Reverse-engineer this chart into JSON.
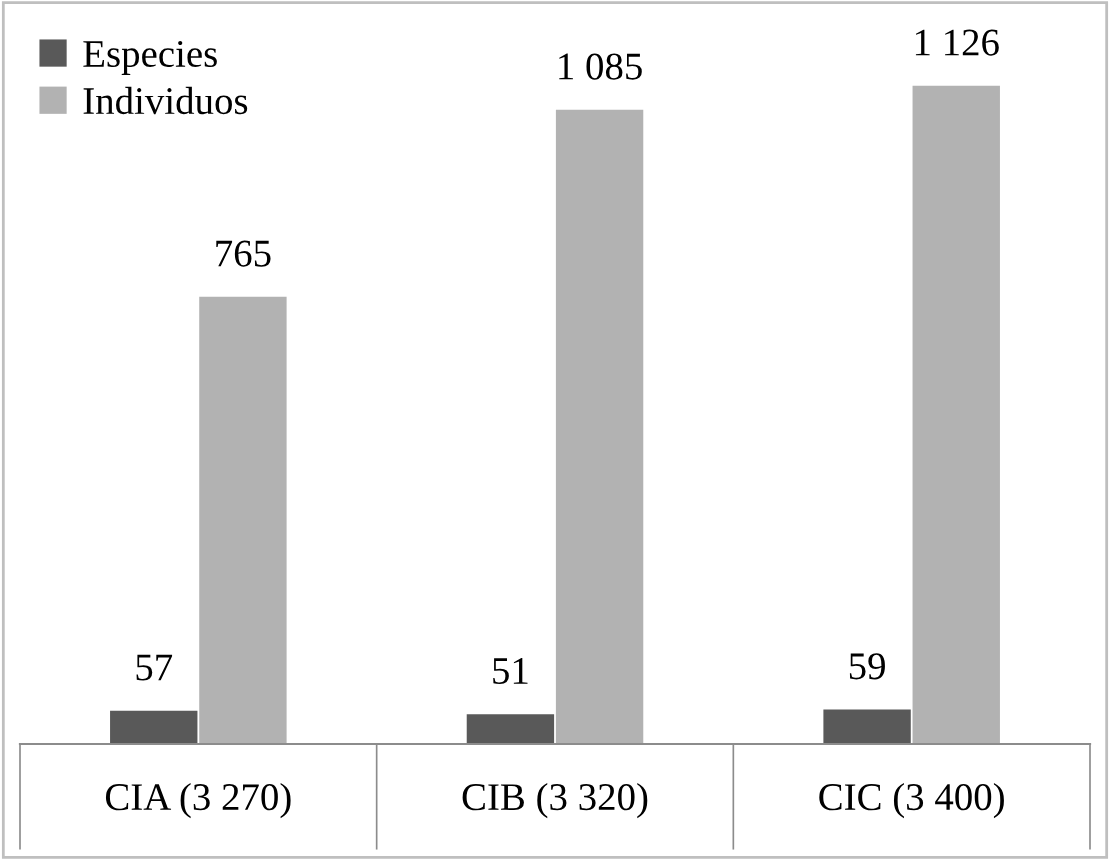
{
  "chart_data": {
    "type": "bar",
    "categories": [
      "CIA (3 270)",
      "CIB (3 320)",
      "CIC (3 400)"
    ],
    "series": [
      {
        "name": "Especies",
        "color": "#595959",
        "values": [
          57,
          51,
          59
        ],
        "value_labels": [
          "57",
          "51",
          "59"
        ]
      },
      {
        "name": "Individuos",
        "color": "#b2b2b2",
        "values": [
          765,
          1085,
          1126
        ],
        "value_labels": [
          "765",
          "1 085",
          "1 126"
        ]
      }
    ],
    "legend": "top left",
    "grid": false,
    "tick_labels": "x"
  }
}
